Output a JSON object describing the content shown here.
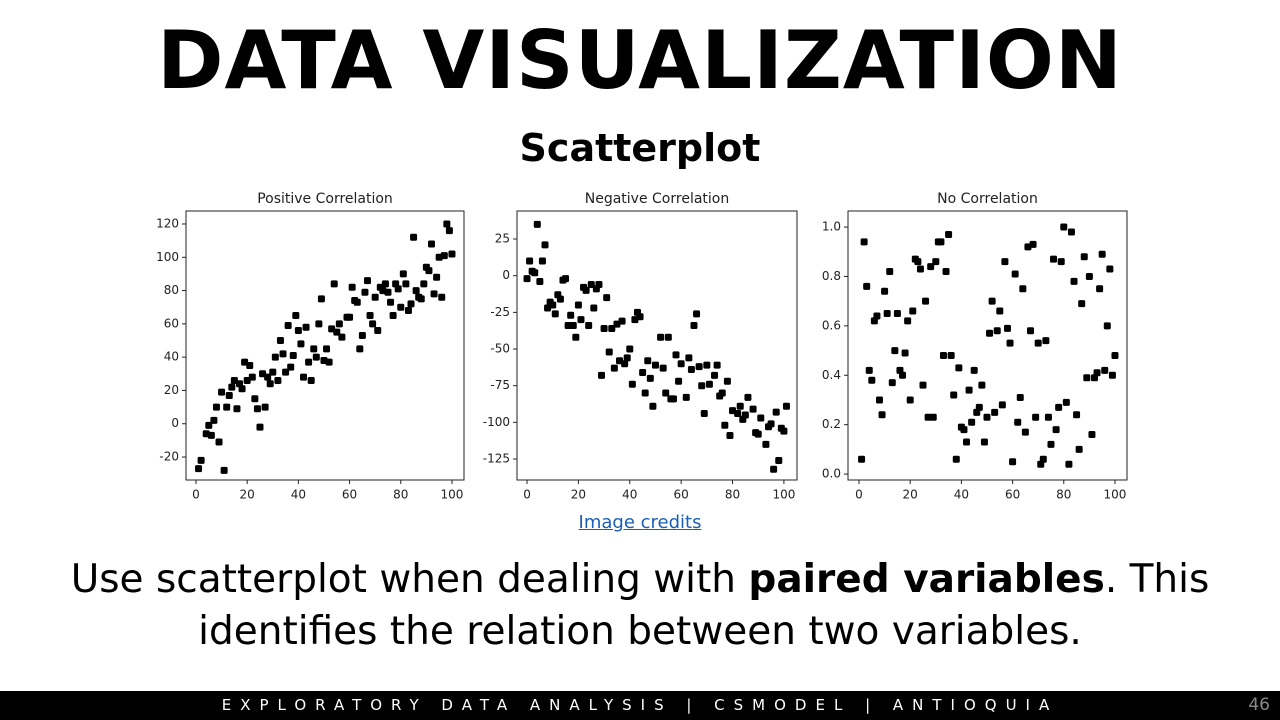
{
  "slide": {
    "title": "DATA VISUALIZATION",
    "subtitle": "Scatterplot",
    "credits": "Image credits",
    "body": {
      "before": "Use scatterplot when dealing with ",
      "bold": "paired variables",
      "after": ". This identifies the relation between two variables."
    },
    "footer": "EXPLORATORY DATA ANALYSIS | CSMODEL | ANTIOQUIA",
    "page_number": "46"
  },
  "chart_data": [
    {
      "type": "scatter",
      "title": "Positive Correlation",
      "color": "#000000",
      "xlim": [
        -3.9,
        104.7
      ],
      "ylim": [
        -33.8,
        127.8
      ],
      "xticks": [
        0,
        20,
        40,
        60,
        80,
        100
      ],
      "yticks": [
        -20,
        0,
        20,
        40,
        60,
        80,
        100,
        120
      ],
      "x": [
        1,
        2,
        4,
        5,
        6,
        7,
        8,
        9,
        10,
        11,
        12,
        13,
        14,
        15,
        16,
        17,
        18,
        19,
        20,
        21,
        22,
        23,
        24,
        25,
        26,
        27,
        28,
        29,
        30,
        31,
        32,
        33,
        34,
        35,
        36,
        37,
        38,
        39,
        40,
        41,
        42,
        43,
        44,
        45,
        46,
        47,
        48,
        49,
        50,
        51,
        52,
        53,
        54,
        55,
        56,
        57,
        59,
        60,
        61,
        62,
        63,
        64,
        65,
        66,
        67,
        68,
        69,
        70,
        71,
        72,
        73,
        74,
        75,
        76,
        77,
        78,
        79,
        80,
        81,
        82,
        83,
        84,
        85,
        86,
        87,
        88,
        89,
        90,
        91,
        92,
        93,
        94,
        95,
        96,
        97,
        98,
        99,
        100
      ],
      "values": [
        -27,
        -22,
        -6,
        -1,
        -7,
        2,
        10,
        -11,
        19,
        -28,
        10,
        17,
        22,
        26,
        9,
        24,
        21,
        37,
        26,
        35,
        28,
        15,
        9,
        -2,
        30,
        10,
        28,
        24,
        31,
        40,
        26,
        50,
        42,
        31,
        59,
        34,
        41,
        65,
        56,
        48,
        28,
        58,
        37,
        26,
        45,
        40,
        60,
        75,
        38,
        45,
        37,
        57,
        84,
        55,
        60,
        52,
        64,
        64,
        82,
        74,
        73,
        45,
        53,
        79,
        86,
        65,
        60,
        76,
        56,
        82,
        80,
        84,
        79,
        73,
        65,
        84,
        81,
        70,
        90,
        84,
        68,
        72,
        112,
        80,
        76,
        75,
        84,
        94,
        92,
        108,
        78,
        88,
        100,
        76,
        101,
        120,
        116,
        102
      ]
    },
    {
      "type": "scatter",
      "title": "Negative Correlation",
      "color": "#000000",
      "xlim": [
        -3.9,
        105.1
      ],
      "ylim": [
        -139.3,
        44.1
      ],
      "xticks": [
        0,
        20,
        40,
        60,
        80,
        100
      ],
      "yticks": [
        -125,
        -100,
        -75,
        -50,
        -25,
        0,
        25
      ],
      "x": [
        0,
        1,
        2,
        3,
        4,
        5,
        6,
        7,
        8,
        9,
        10,
        11,
        12,
        13,
        14,
        15,
        16,
        17,
        18,
        19,
        20,
        21,
        22,
        23,
        24,
        25,
        26,
        27,
        28,
        29,
        30,
        31,
        32,
        33,
        34,
        35,
        36,
        37,
        38,
        39,
        40,
        41,
        42,
        43,
        44,
        45,
        46,
        47,
        48,
        49,
        50,
        52,
        53,
        54,
        55,
        56,
        57,
        58,
        59,
        60,
        62,
        63,
        64,
        65,
        66,
        67,
        68,
        69,
        70,
        71,
        73,
        74,
        75,
        76,
        77,
        78,
        79,
        80,
        82,
        83,
        84,
        85,
        86,
        88,
        89,
        90,
        91,
        93,
        94,
        95,
        96,
        97,
        98,
        99,
        100,
        101
      ],
      "values": [
        -2,
        10,
        3,
        2,
        35,
        -4,
        10,
        21,
        -22,
        -18,
        -20,
        -26,
        -13,
        -16,
        -3,
        -2,
        -34,
        -27,
        -34,
        -42,
        -20,
        -30,
        -8,
        -10,
        -34,
        -6,
        -22,
        -9,
        -6,
        -68,
        -36,
        -15,
        -52,
        -36,
        -63,
        -33,
        -58,
        -31,
        -60,
        -56,
        -50,
        -74,
        -30,
        -25,
        -28,
        -66,
        -80,
        -58,
        -70,
        -89,
        -61,
        -42,
        -63,
        -80,
        -42,
        -84,
        -84,
        -54,
        -72,
        -60,
        -83,
        -56,
        -64,
        -34,
        -26,
        -62,
        -75,
        -94,
        -61,
        -74,
        -68,
        -61,
        -82,
        -80,
        -102,
        -72,
        -109,
        -92,
        -94,
        -89,
        -98,
        -95,
        -83,
        -91,
        -107,
        -108,
        -97,
        -115,
        -103,
        -101,
        -132,
        -93,
        -126,
        -104,
        -106,
        -89
      ]
    },
    {
      "type": "scatter",
      "title": "No Correlation",
      "color": "#000000",
      "xlim": [
        -4.3,
        104.7
      ],
      "ylim": [
        -0.024,
        1.065
      ],
      "xticks": [
        0,
        20,
        40,
        60,
        80,
        100
      ],
      "yticks": [
        {
          "value": 0,
          "label": "0.0"
        },
        0.2,
        0.4,
        0.6,
        0.8,
        {
          "value": 1,
          "label": "1.0"
        }
      ],
      "x": [
        1,
        2,
        3,
        4,
        5,
        6,
        7,
        8,
        9,
        10,
        11,
        12,
        13,
        14,
        15,
        16,
        17,
        18,
        19,
        20,
        21,
        22,
        23,
        24,
        25,
        26,
        27,
        28,
        29,
        30,
        31,
        32,
        33,
        34,
        35,
        36,
        37,
        38,
        39,
        40,
        41,
        42,
        43,
        44,
        45,
        46,
        47,
        48,
        49,
        50,
        51,
        52,
        53,
        54,
        55,
        56,
        57,
        58,
        59,
        60,
        61,
        62,
        63,
        64,
        65,
        66,
        67,
        68,
        69,
        70,
        71,
        72,
        73,
        74,
        75,
        76,
        77,
        78,
        79,
        80,
        81,
        82,
        83,
        84,
        85,
        86,
        87,
        88,
        89,
        90,
        91,
        92,
        93,
        94,
        95,
        96,
        97,
        98,
        99,
        100
      ],
      "values": [
        0.06,
        0.94,
        0.76,
        0.42,
        0.38,
        0.62,
        0.64,
        0.3,
        0.24,
        0.74,
        0.65,
        0.82,
        0.37,
        0.5,
        0.65,
        0.42,
        0.4,
        0.49,
        0.62,
        0.3,
        0.66,
        0.87,
        0.86,
        0.83,
        0.36,
        0.7,
        0.23,
        0.84,
        0.23,
        0.86,
        0.94,
        0.94,
        0.48,
        0.82,
        0.97,
        0.48,
        0.32,
        0.06,
        0.43,
        0.19,
        0.18,
        0.13,
        0.34,
        0.21,
        0.42,
        0.25,
        0.27,
        0.36,
        0.13,
        0.23,
        0.57,
        0.7,
        0.25,
        0.58,
        0.66,
        0.28,
        0.86,
        0.59,
        0.53,
        0.05,
        0.81,
        0.21,
        0.31,
        0.75,
        0.17,
        0.92,
        0.58,
        0.93,
        0.23,
        0.53,
        0.04,
        0.06,
        0.54,
        0.23,
        0.12,
        0.87,
        0.18,
        0.27,
        0.86,
        1.0,
        0.29,
        0.04,
        0.98,
        0.78,
        0.24,
        0.1,
        0.69,
        0.88,
        0.39,
        0.8,
        0.16,
        0.39,
        0.41,
        0.75,
        0.89,
        0.42,
        0.6,
        0.83,
        0.4,
        0.48
      ]
    }
  ]
}
